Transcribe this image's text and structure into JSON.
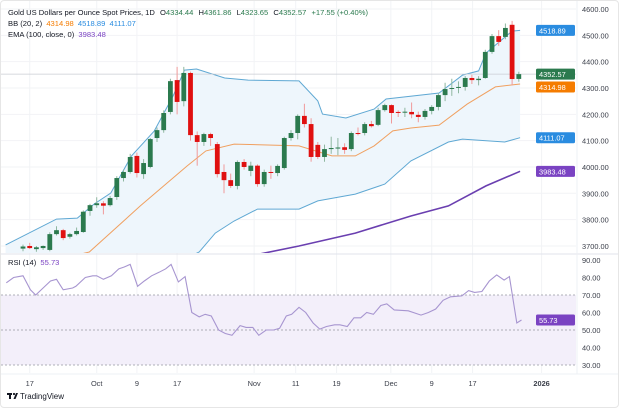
{
  "header": {
    "symbol_title": "Gold US Dollars per Ounce Spot Prices, 1D",
    "open_label": "O",
    "open": "4334.44",
    "high_label": "H",
    "high": "4361.86",
    "low_label": "L",
    "low": "4323.65",
    "close_label": "C",
    "close": "4352.57",
    "change": "+17.55 (+0.40%)",
    "bb_label": "BB (20, 2)",
    "bb_basis": "4314.98",
    "bb_upper": "4518.89",
    "bb_lower": "4111.07",
    "ema_label": "EMA (100, close, 0)",
    "ema_value": "3983.48"
  },
  "rsi_header": {
    "label": "RSI (14)",
    "value": "55.73"
  },
  "price_tags": {
    "upper": "4518.89",
    "close": "4352.57",
    "basis": "4314.98",
    "lower": "4111.07",
    "ema": "3983.48",
    "rsi": "55.73"
  },
  "colors": {
    "up": "#2b7a4e",
    "down": "#e01010",
    "bb_upper_lower": "#5fa8d3",
    "bb_basis": "#f0a060",
    "bb_fill": "#eef6fc",
    "ema": "#6a3fb0",
    "rsi": "#a795d0",
    "rsi_band": "#f3effa",
    "tag_blue": "#2a8ce0",
    "tag_orange": "#f57c00",
    "tag_purple": "#7a43c2"
  },
  "branding": {
    "logo_text": "TradingView"
  },
  "chart_data": [
    {
      "type": "candlestick",
      "title": "Gold US Dollars per Ounce Spot Prices, 1D",
      "ylim": [
        3680,
        4620
      ],
      "y_ticks": [
        "4600.00",
        "4500.00",
        "4400.00",
        "4300.00",
        "4200.00",
        "4100.00",
        "4000.00",
        "3900.00",
        "3800.00",
        "3700.00"
      ],
      "x_ticks": [
        {
          "label": "17",
          "bar": 1
        },
        {
          "label": "Oct",
          "bar": 11
        },
        {
          "label": "9",
          "bar": 17
        },
        {
          "label": "17",
          "bar": 23
        },
        {
          "label": "Nov",
          "bar": 34.5
        },
        {
          "label": "11",
          "bar": 40.7
        },
        {
          "label": "19",
          "bar": 46.8
        },
        {
          "label": "Dec",
          "bar": 54.9
        },
        {
          "label": "9",
          "bar": 61
        },
        {
          "label": "17",
          "bar": 67.1
        },
        {
          "label": "2026",
          "bar": 77.4
        }
      ],
      "ohlc": [
        [
          3690,
          3705,
          3680,
          3698
        ],
        [
          3700,
          3712,
          3688,
          3692
        ],
        [
          3688,
          3700,
          3678,
          3695
        ],
        [
          3692,
          3702,
          3685,
          3700
        ],
        [
          3685,
          3752,
          3680,
          3745
        ],
        [
          3745,
          3775,
          3740,
          3760
        ],
        [
          3760,
          3765,
          3722,
          3730
        ],
        [
          3735,
          3750,
          3728,
          3745
        ],
        [
          3745,
          3770,
          3740,
          3757
        ],
        [
          3753,
          3835,
          3750,
          3830
        ],
        [
          3833,
          3860,
          3815,
          3855
        ],
        [
          3855,
          3885,
          3845,
          3862
        ],
        [
          3862,
          3870,
          3820,
          3853
        ],
        [
          3855,
          3890,
          3850,
          3882
        ],
        [
          3886,
          3965,
          3875,
          3958
        ],
        [
          3958,
          3990,
          3945,
          3981
        ],
        [
          3981,
          4050,
          3975,
          4038
        ],
        [
          4042,
          4055,
          3960,
          3977
        ],
        [
          3973,
          4030,
          3955,
          4015
        ],
        [
          4000,
          4110,
          3995,
          4106
        ],
        [
          4110,
          4150,
          4095,
          4140
        ],
        [
          4140,
          4215,
          4130,
          4205
        ],
        [
          4209,
          4335,
          4200,
          4326
        ],
        [
          4330,
          4380,
          4200,
          4247
        ],
        [
          4250,
          4380,
          4230,
          4357
        ],
        [
          4357,
          4362,
          4100,
          4121
        ],
        [
          4121,
          4135,
          4005,
          4095
        ],
        [
          4095,
          4130,
          4080,
          4125
        ],
        [
          4125,
          4130,
          4080,
          4110
        ],
        [
          4087,
          4095,
          3960,
          3973
        ],
        [
          3981,
          4010,
          3900,
          3950
        ],
        [
          3950,
          3975,
          3920,
          3928
        ],
        [
          3928,
          4025,
          3915,
          4019
        ],
        [
          4019,
          4030,
          3990,
          4000
        ],
        [
          3985,
          4020,
          3965,
          4005
        ],
        [
          4005,
          4010,
          3925,
          3935
        ],
        [
          3935,
          3990,
          3925,
          3981
        ],
        [
          3981,
          4005,
          3955,
          3978
        ],
        [
          3977,
          4010,
          3965,
          4004
        ],
        [
          3996,
          4115,
          3990,
          4110
        ],
        [
          4110,
          4140,
          4100,
          4129
        ],
        [
          4129,
          4200,
          4105,
          4194
        ],
        [
          4194,
          4240,
          4150,
          4163
        ],
        [
          4163,
          4185,
          4020,
          4038
        ],
        [
          4084,
          4095,
          4030,
          4038
        ],
        [
          4038,
          4085,
          4020,
          4068
        ],
        [
          4068,
          4115,
          4050,
          4072
        ],
        [
          4070,
          4110,
          4045,
          4074
        ],
        [
          4075,
          4090,
          4050,
          4065
        ],
        [
          4068,
          4135,
          4060,
          4129
        ],
        [
          4129,
          4150,
          4120,
          4127
        ],
        [
          4129,
          4170,
          4120,
          4163
        ],
        [
          4163,
          4175,
          4150,
          4155
        ],
        [
          4160,
          4225,
          4155,
          4216
        ],
        [
          4216,
          4240,
          4210,
          4235
        ],
        [
          4235,
          4238,
          4165,
          4205
        ],
        [
          4209,
          4215,
          4190,
          4207
        ],
        [
          4207,
          4225,
          4190,
          4210
        ],
        [
          4209,
          4245,
          4185,
          4200
        ],
        [
          4198,
          4210,
          4170,
          4190
        ],
        [
          4190,
          4220,
          4180,
          4213
        ],
        [
          4213,
          4235,
          4200,
          4228
        ],
        [
          4228,
          4280,
          4215,
          4273
        ],
        [
          4273,
          4320,
          4250,
          4296
        ],
        [
          4298,
          4335,
          4270,
          4300
        ],
        [
          4302,
          4325,
          4280,
          4304
        ],
        [
          4304,
          4345,
          4290,
          4338
        ],
        [
          4338,
          4350,
          4315,
          4330
        ],
        [
          4330,
          4345,
          4310,
          4335
        ],
        [
          4338,
          4445,
          4335,
          4437
        ],
        [
          4437,
          4505,
          4430,
          4497
        ],
        [
          4497,
          4520,
          4460,
          4475
        ],
        [
          4494,
          4545,
          4485,
          4528
        ],
        [
          4540,
          4555,
          4310,
          4334
        ],
        [
          4334.44,
          4361.86,
          4323.65,
          4352.57
        ]
      ],
      "overlays": {
        "bb_upper": [
          [
            -2.6,
            3704
          ],
          [
            5,
            3802
          ],
          [
            8.1,
            3806
          ],
          [
            10.6,
            3859
          ],
          [
            13.1,
            3901
          ],
          [
            16.2,
            4042
          ],
          [
            19.6,
            4137
          ],
          [
            22.4,
            4270
          ],
          [
            24.1,
            4368
          ],
          [
            25.9,
            4372
          ],
          [
            30.1,
            4338
          ],
          [
            33.6,
            4330
          ],
          [
            41.2,
            4327
          ],
          [
            44,
            4251
          ],
          [
            44.7,
            4201
          ],
          [
            48.2,
            4186
          ],
          [
            52.4,
            4220
          ],
          [
            54.2,
            4258
          ],
          [
            62.1,
            4281
          ],
          [
            65.6,
            4349
          ],
          [
            68,
            4365
          ],
          [
            69.1,
            4433
          ],
          [
            73,
            4516
          ],
          [
            74.2,
            4518.89
          ]
        ],
        "bb_basis": [
          [
            -2.6,
            3600
          ],
          [
            9.9,
            3677
          ],
          [
            17.5,
            3852
          ],
          [
            24.5,
            4004
          ],
          [
            27.3,
            4061
          ],
          [
            31.5,
            4087
          ],
          [
            41.2,
            4080
          ],
          [
            46.1,
            4042
          ],
          [
            49.6,
            4042
          ],
          [
            52.4,
            4080
          ],
          [
            55.2,
            4137
          ],
          [
            57.9,
            4148
          ],
          [
            62.1,
            4159
          ],
          [
            66.3,
            4239
          ],
          [
            70.5,
            4304
          ],
          [
            74.2,
            4314.98
          ]
        ],
        "bb_lower": [
          [
            -2.6,
            3400
          ],
          [
            10,
            3500
          ],
          [
            20,
            3600
          ],
          [
            26.3,
            3677
          ],
          [
            28.7,
            3749
          ],
          [
            31.5,
            3795
          ],
          [
            35,
            3840
          ],
          [
            41.2,
            3840
          ],
          [
            44,
            3871
          ],
          [
            49.6,
            3897
          ],
          [
            54,
            3935
          ],
          [
            57.9,
            4023
          ],
          [
            63.5,
            4095
          ],
          [
            65.6,
            4106
          ],
          [
            71.9,
            4095
          ],
          [
            74.2,
            4111.07
          ]
        ],
        "ema": [
          [
            20,
            3600
          ],
          [
            35.4,
            3670
          ],
          [
            41.2,
            3700
          ],
          [
            49.6,
            3749
          ],
          [
            57.9,
            3814
          ],
          [
            63.5,
            3852
          ],
          [
            69.1,
            3928
          ],
          [
            74.2,
            3983.48
          ]
        ]
      }
    },
    {
      "type": "line",
      "title": "RSI (14)",
      "ylim": [
        30,
        90
      ],
      "y_ticks": [
        "90.00",
        "80.00",
        "70.00",
        "60.00",
        "50.00",
        "40.00",
        "30.00"
      ],
      "bands": {
        "upper": 70,
        "middle": 50,
        "lower": 30
      },
      "points": [
        [
          -2.5,
          77
        ],
        [
          -1.4,
          80
        ],
        [
          0,
          81
        ],
        [
          1.1,
          73
        ],
        [
          1.9,
          70
        ],
        [
          3,
          74
        ],
        [
          4.1,
          78
        ],
        [
          5,
          79
        ],
        [
          6,
          73
        ],
        [
          7.4,
          74
        ],
        [
          7.9,
          75
        ],
        [
          9.3,
          80
        ],
        [
          10.4,
          81
        ],
        [
          11,
          81
        ],
        [
          12,
          79
        ],
        [
          13.2,
          81
        ],
        [
          14.3,
          85
        ],
        [
          15.1,
          86
        ],
        [
          16,
          87.5
        ],
        [
          17.1,
          75
        ],
        [
          18.1,
          78
        ],
        [
          19.2,
          81
        ],
        [
          20.3,
          83
        ],
        [
          21.3,
          85
        ],
        [
          22.1,
          87.5
        ],
        [
          23.2,
          77.5
        ],
        [
          24.2,
          80.5
        ],
        [
          25.2,
          60
        ],
        [
          26.3,
          57.5
        ],
        [
          27.2,
          59
        ],
        [
          28.1,
          58
        ],
        [
          29.2,
          50
        ],
        [
          30.2,
          48
        ],
        [
          31.2,
          47
        ],
        [
          32.4,
          52.5
        ],
        [
          33.3,
          51.5
        ],
        [
          34.3,
          51.5
        ],
        [
          35.2,
          47
        ],
        [
          36.3,
          50
        ],
        [
          37.4,
          50
        ],
        [
          38.3,
          51
        ],
        [
          39.3,
          58
        ],
        [
          40.1,
          59
        ],
        [
          41.2,
          63
        ],
        [
          42.2,
          60
        ],
        [
          43.3,
          54
        ],
        [
          44.3,
          50.5
        ],
        [
          45.3,
          52
        ],
        [
          46.5,
          53
        ],
        [
          47.3,
          53
        ],
        [
          48.4,
          52
        ],
        [
          49.4,
          57
        ],
        [
          50.4,
          57
        ],
        [
          51.3,
          60
        ],
        [
          52.3,
          59
        ],
        [
          53.4,
          64
        ],
        [
          54.3,
          65
        ],
        [
          55.4,
          61.5
        ],
        [
          57.5,
          61
        ],
        [
          59.4,
          58.5
        ],
        [
          60.5,
          60
        ],
        [
          61.6,
          62
        ],
        [
          62.7,
          67
        ],
        [
          63.8,
          69
        ],
        [
          65.5,
          69.5
        ],
        [
          66.5,
          72.5
        ],
        [
          67.4,
          71.5
        ],
        [
          68.5,
          72
        ],
        [
          69.6,
          78
        ],
        [
          70.7,
          81.5
        ],
        [
          71.8,
          78.5
        ],
        [
          72.6,
          80.5
        ],
        [
          73.7,
          54
        ],
        [
          74.4,
          55.73
        ]
      ]
    }
  ]
}
